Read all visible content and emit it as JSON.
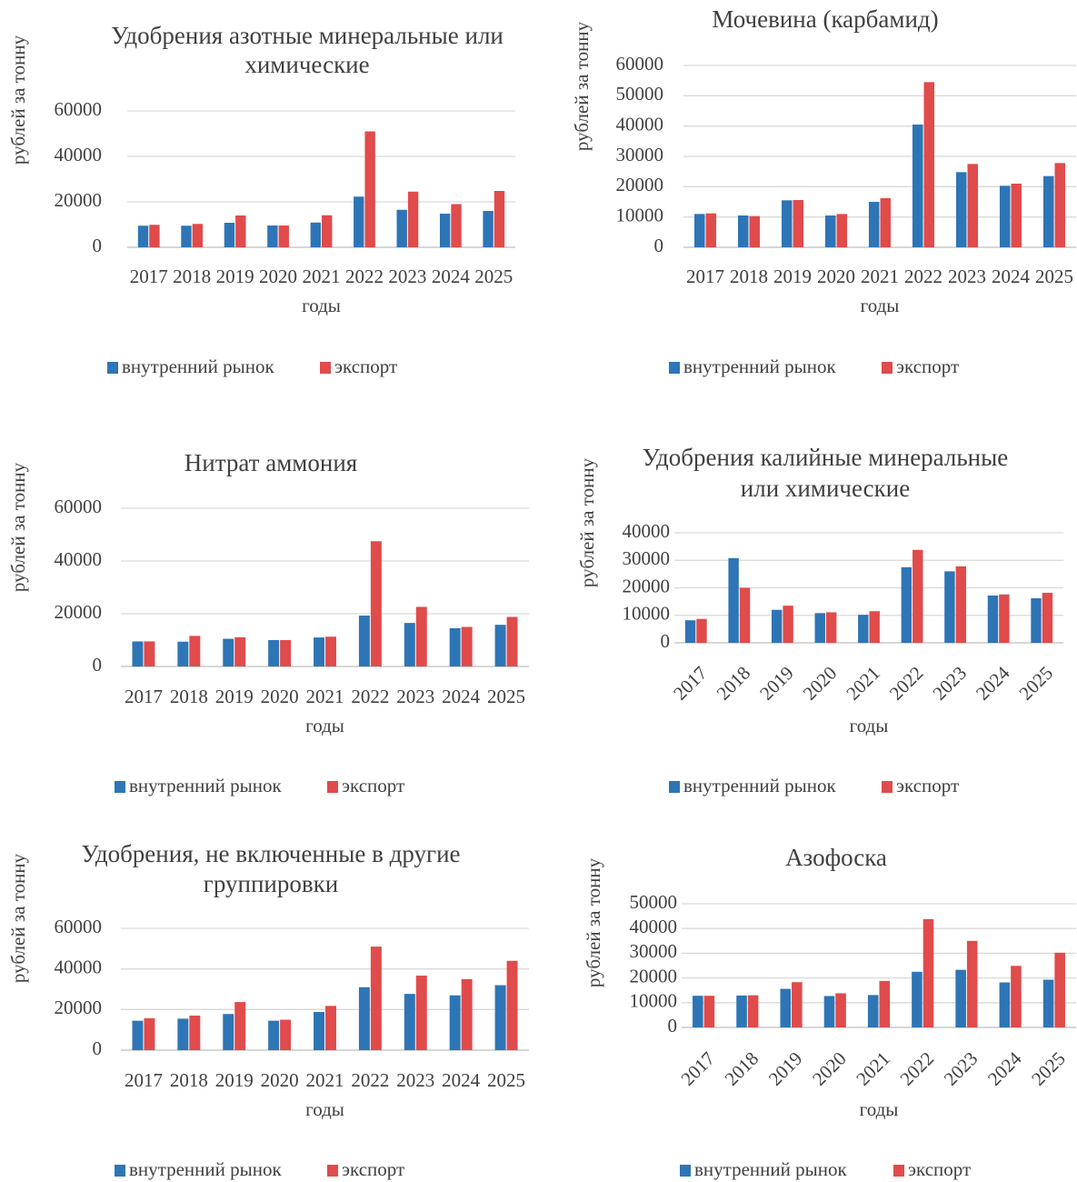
{
  "legend": {
    "domestic": "внутренний рынок",
    "export": "экспорт"
  },
  "colors": {
    "domestic": "#2e75b6",
    "export": "#e04b4b",
    "grid": "#d9d9d9",
    "axis": "#bfbfbf"
  },
  "chart_data": [
    {
      "type": "bar",
      "title": "Удобрения азотные минеральные или химические",
      "title_lines": [
        "Удобрения азотные минеральные или",
        "химические"
      ],
      "xlabel": "годы",
      "ylabel": "рублей за тонну",
      "ylim": [
        0,
        60000
      ],
      "yticks": [
        0,
        20000,
        40000,
        60000
      ],
      "ytick_labels": [
        "0",
        "20000",
        "40000",
        "60000"
      ],
      "categories": [
        "2017",
        "2018",
        "2019",
        "2020",
        "2021",
        "2022",
        "2023",
        "2024",
        "2025"
      ],
      "series": [
        {
          "name": "внутренний рынок",
          "values": [
            9500,
            9500,
            10800,
            9600,
            10900,
            22300,
            16500,
            14800,
            16000
          ]
        },
        {
          "name": "экспорт",
          "values": [
            9900,
            10300,
            14000,
            9600,
            14100,
            51000,
            24500,
            19000,
            24800
          ]
        }
      ],
      "grid": true,
      "legend_position": "bottom",
      "rotated_xticks": false
    },
    {
      "type": "bar",
      "title": "Мочевина (карбамид)",
      "title_lines": [
        "Мочевина (карбамид)"
      ],
      "xlabel": "годы",
      "ylabel": "рублей за тонну",
      "ylim": [
        0,
        60000
      ],
      "yticks": [
        0,
        10000,
        20000,
        30000,
        40000,
        50000,
        60000
      ],
      "ytick_labels": [
        "0",
        "10000",
        "20000",
        "30000",
        "40000",
        "50000",
        "60000"
      ],
      "categories": [
        "2017",
        "2018",
        "2019",
        "2020",
        "2021",
        "2022",
        "2023",
        "2024",
        "2025"
      ],
      "series": [
        {
          "name": "внутренний рынок",
          "values": [
            11000,
            10500,
            15500,
            10500,
            15000,
            40500,
            24800,
            20300,
            23500
          ]
        },
        {
          "name": "экспорт",
          "values": [
            11200,
            10300,
            15600,
            11000,
            16200,
            54500,
            27500,
            21000,
            27800
          ]
        }
      ],
      "grid": true,
      "legend_position": "bottom",
      "rotated_xticks": false
    },
    {
      "type": "bar",
      "title": "Нитрат аммония",
      "title_lines": [
        "Нитрат аммония"
      ],
      "xlabel": "годы",
      "ylabel": "рублей за тонну",
      "ylim": [
        0,
        60000
      ],
      "yticks": [
        0,
        20000,
        40000,
        60000
      ],
      "ytick_labels": [
        "0",
        "20000",
        "40000",
        "60000"
      ],
      "categories": [
        "2017",
        "2018",
        "2019",
        "2020",
        "2021",
        "2022",
        "2023",
        "2024",
        "2025"
      ],
      "series": [
        {
          "name": "внутренний рынок",
          "values": [
            9500,
            9400,
            10500,
            10000,
            11000,
            19300,
            16500,
            14500,
            15800
          ]
        },
        {
          "name": "экспорт",
          "values": [
            9500,
            11600,
            11100,
            10000,
            11300,
            47500,
            22600,
            15000,
            18800
          ]
        }
      ],
      "grid": true,
      "legend_position": "bottom",
      "rotated_xticks": false
    },
    {
      "type": "bar",
      "title": "Удобрения калийные минеральные или химические",
      "title_lines": [
        "Удобрения калийные минеральные",
        "или химические"
      ],
      "xlabel": "годы",
      "ylabel": "рублей за тонну",
      "ylim": [
        0,
        40000
      ],
      "yticks": [
        0,
        10000,
        20000,
        30000,
        40000
      ],
      "ytick_labels": [
        "0",
        "10000",
        "20000",
        "30000",
        "40000"
      ],
      "categories": [
        "2017",
        "2018",
        "2019",
        "2020",
        "2021",
        "2022",
        "2023",
        "2024",
        "2025"
      ],
      "series": [
        {
          "name": "внутренний рынок",
          "values": [
            8200,
            30800,
            12000,
            10800,
            10200,
            27500,
            26000,
            17200,
            16200
          ]
        },
        {
          "name": "экспорт",
          "values": [
            8700,
            20000,
            13500,
            11100,
            11500,
            33800,
            27800,
            17600,
            18200
          ]
        }
      ],
      "grid": true,
      "legend_position": "bottom",
      "rotated_xticks": true
    },
    {
      "type": "bar",
      "title": "Удобрения, не включенные в другие группировки",
      "title_lines": [
        "Удобрения, не включенные в другие",
        "группировки"
      ],
      "xlabel": "годы",
      "ylabel": "рублей за тонну",
      "ylim": [
        0,
        60000
      ],
      "yticks": [
        0,
        20000,
        40000,
        60000
      ],
      "ytick_labels": [
        "0",
        "20000",
        "40000",
        "60000"
      ],
      "categories": [
        "2017",
        "2018",
        "2019",
        "2020",
        "2021",
        "2022",
        "2023",
        "2024",
        "2025"
      ],
      "series": [
        {
          "name": "внутренний рынок",
          "values": [
            14500,
            15500,
            17800,
            14500,
            18800,
            31000,
            27700,
            27000,
            32000
          ]
        },
        {
          "name": "экспорт",
          "values": [
            15700,
            17000,
            23700,
            15000,
            21800,
            51000,
            36700,
            35000,
            44000
          ]
        }
      ],
      "grid": true,
      "legend_position": "bottom",
      "rotated_xticks": false
    },
    {
      "type": "bar",
      "title": "Азофоска",
      "title_lines": [
        "Азофоска"
      ],
      "xlabel": "годы",
      "ylabel": "рублей за тонну",
      "ylim": [
        0,
        50000
      ],
      "yticks": [
        0,
        10000,
        20000,
        30000,
        40000,
        50000
      ],
      "ytick_labels": [
        "0",
        "10000",
        "20000",
        "30000",
        "40000",
        "50000"
      ],
      "categories": [
        "2017",
        "2018",
        "2019",
        "2020",
        "2021",
        "2022",
        "2023",
        "2024",
        "2025"
      ],
      "series": [
        {
          "name": "внутренний рынок",
          "values": [
            12800,
            12900,
            15600,
            12700,
            13100,
            22500,
            23300,
            18200,
            19300
          ]
        },
        {
          "name": "экспорт",
          "values": [
            12800,
            13000,
            18300,
            13800,
            18800,
            43800,
            35000,
            24900,
            30200
          ]
        }
      ],
      "grid": true,
      "legend_position": "bottom",
      "rotated_xticks": true
    }
  ]
}
